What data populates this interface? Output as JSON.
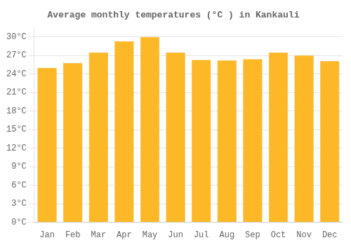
{
  "chart_data": {
    "type": "bar",
    "title": "Average monthly temperatures (°C ) in Kankauli",
    "categories": [
      "Jan",
      "Feb",
      "Mar",
      "Apr",
      "May",
      "Jun",
      "Jul",
      "Aug",
      "Sep",
      "Oct",
      "Nov",
      "Dec"
    ],
    "values": [
      25.0,
      25.8,
      27.5,
      29.3,
      30.0,
      27.5,
      26.3,
      26.2,
      26.4,
      27.5,
      27.0,
      26.1
    ],
    "color": "#FDB827",
    "ylim": [
      0,
      31.5
    ],
    "yticks": [
      {
        "value": 0,
        "label": "0°C"
      },
      {
        "value": 3,
        "label": "3°C"
      },
      {
        "value": 6,
        "label": "6°C"
      },
      {
        "value": 9,
        "label": "9°C"
      },
      {
        "value": 12,
        "label": "12°C"
      },
      {
        "value": 15,
        "label": "15°C"
      },
      {
        "value": 18,
        "label": "18°C"
      },
      {
        "value": 21,
        "label": "21°C"
      },
      {
        "value": 24,
        "label": "24°C"
      },
      {
        "value": 27,
        "label": "27°C"
      },
      {
        "value": 30,
        "label": "30°C"
      }
    ],
    "grid": true
  }
}
